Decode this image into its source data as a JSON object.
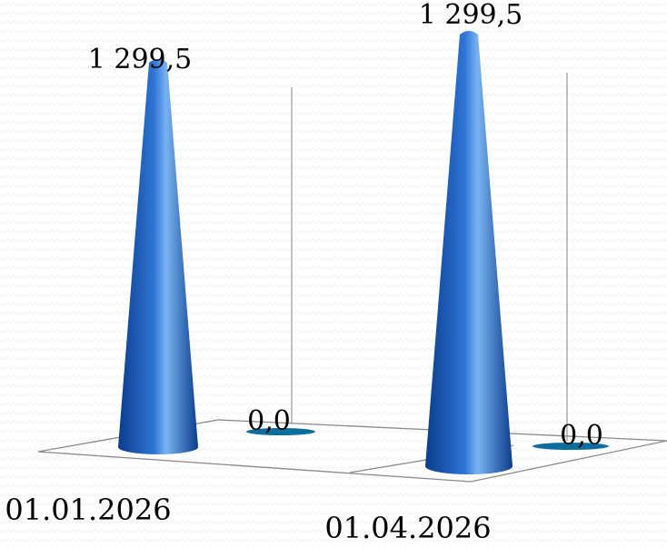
{
  "chart_data": {
    "type": "bar",
    "shape": "cone-3d",
    "categories": [
      "01.01.2026",
      "01.04.2026"
    ],
    "series": [
      {
        "values": [
          1299.5,
          1299.5
        ],
        "value_labels": [
          "1 299,5",
          "1 299,5"
        ]
      },
      {
        "values": [
          0,
          0
        ],
        "value_labels": [
          "0,0",
          "0,0"
        ]
      }
    ],
    "ylim": [
      0,
      1299.5
    ],
    "grid": false,
    "legend": "none",
    "colors": {
      "cone_dark": "#0a3d8c",
      "cone_mid": "#2f74d6",
      "cone_light": "#79b3f2",
      "base_disc": "#0c6e9c",
      "background": "#ffffff",
      "floor_line": "#8a8a8a",
      "wall_line": "#9a9a9a"
    }
  }
}
